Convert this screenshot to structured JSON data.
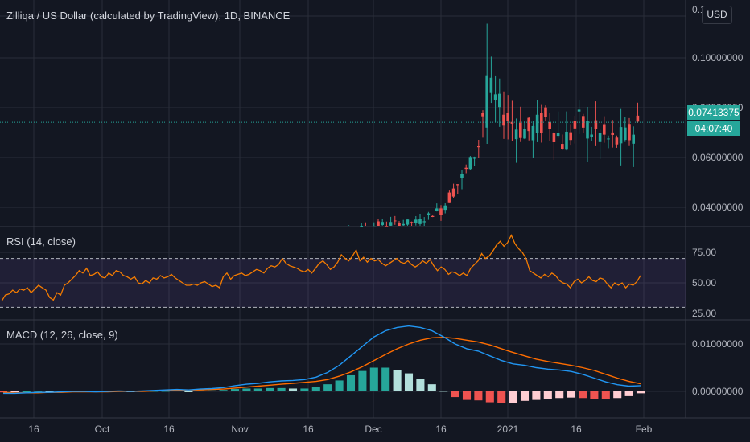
{
  "header": {
    "title": "Zilliqa / US Dollar (calculated by TradingView), 1D, BINANCE",
    "currency_button": "USD"
  },
  "price_tag": {
    "last_price": "0.07413375",
    "countdown": "04:07:40"
  },
  "colors": {
    "background": "#131722",
    "grid": "#2a2e39",
    "up": "#26a69a",
    "down": "#ef5350",
    "rsi_line": "#f57c00",
    "rsi_band": "#7e57c2",
    "macd_line": "#2196f3",
    "signal_line": "#ff6d00",
    "hist_up_strong": "#26a69a",
    "hist_up_weak": "#b2dfdb",
    "hist_down_strong": "#ef5350",
    "hist_down_weak": "#ffcdd2"
  },
  "chart_data": [
    {
      "type": "candlestick",
      "title": "Zilliqa / US Dollar (calculated by TradingView), 1D, BINANCE",
      "y_ticks": [
        "0.1",
        "0.10000000",
        "0.08000000",
        "0.06000000",
        "0.04000000"
      ],
      "ylim": [
        0.022,
        0.12
      ],
      "last_price": 0.07413375,
      "ohlc_sample": [
        {
          "date": "2020-11-23",
          "open": 0.0253,
          "high": 0.0385,
          "low": 0.0245,
          "close": 0.0312
        },
        {
          "date": "2020-12-01",
          "open": 0.033,
          "high": 0.037,
          "low": 0.029,
          "close": 0.031
        },
        {
          "date": "2020-12-14",
          "open": 0.034,
          "high": 0.0365,
          "low": 0.033,
          "close": 0.036
        },
        {
          "date": "2020-12-20",
          "open": 0.052,
          "high": 0.062,
          "low": 0.048,
          "close": 0.06
        },
        {
          "date": "2020-12-25",
          "open": 0.075,
          "high": 0.105,
          "low": 0.065,
          "close": 0.093
        },
        {
          "date": "2021-01-05",
          "open": 0.08,
          "high": 0.095,
          "low": 0.06,
          "close": 0.07
        },
        {
          "date": "2021-01-15",
          "open": 0.072,
          "high": 0.084,
          "low": 0.06,
          "close": 0.078
        },
        {
          "date": "2021-01-28",
          "open": 0.069,
          "high": 0.08,
          "low": 0.055,
          "close": 0.0741
        }
      ]
    },
    {
      "type": "line",
      "title": "RSI (14, close)",
      "y_ticks": [
        "75.00",
        "50.00",
        "25.00"
      ],
      "ylim": [
        20,
        92
      ],
      "bands": [
        30,
        70
      ],
      "values": [
        35,
        40,
        41,
        44,
        42,
        45,
        44,
        46,
        42,
        45,
        48,
        46,
        44,
        38,
        36,
        42,
        40,
        48,
        50,
        53,
        56,
        60,
        58,
        62,
        56,
        57,
        59,
        55,
        54,
        58,
        56,
        60,
        59,
        56,
        55,
        53,
        55,
        50,
        49,
        52,
        50,
        54,
        53,
        56,
        54,
        55,
        57,
        54,
        52,
        50,
        48,
        48,
        49,
        48,
        50,
        51,
        49,
        47,
        48,
        46,
        55,
        58,
        53,
        56,
        57,
        58,
        56,
        57,
        59,
        61,
        60,
        58,
        62,
        64,
        63,
        65,
        70,
        66,
        64,
        63,
        62,
        60,
        59,
        61,
        58,
        62,
        66,
        68,
        65,
        61,
        63,
        67,
        73,
        70,
        68,
        72,
        77,
        68,
        71,
        67,
        70,
        68,
        69,
        66,
        64,
        66,
        68,
        70,
        67,
        66,
        68,
        65,
        63,
        65,
        68,
        66,
        69,
        64,
        60,
        63,
        61,
        57,
        59,
        58,
        56,
        58,
        56,
        62,
        65,
        68,
        74,
        70,
        72,
        76,
        81,
        84,
        80,
        83,
        89,
        82,
        78,
        75,
        70,
        60,
        58,
        56,
        54,
        57,
        55,
        58,
        56,
        52,
        50,
        49,
        46,
        51,
        53,
        50,
        52,
        55,
        52,
        51,
        54,
        53,
        49,
        46,
        50,
        48,
        50,
        46,
        49,
        48,
        51,
        56
      ]
    },
    {
      "type": "line",
      "title": "MACD (12, 26, close, 9)",
      "y_ticks": [
        "0.01000000",
        "0.00000000"
      ],
      "ylim": [
        -0.0036,
        0.0165
      ],
      "series": [
        {
          "values_key": "macd"
        },
        {
          "values_key": "signal"
        },
        {
          "values_key": "histogram"
        }
      ],
      "macd": [
        -0.0004,
        -0.0004,
        -0.0003,
        -0.0002,
        -0.0002,
        -0.0001,
        0,
        0,
        -0.0001,
        0,
        0.0001,
        0,
        0.0001,
        0.0002,
        0.0003,
        0.0004,
        0.0003,
        0.0005,
        0.0006,
        0.0008,
        0.0012,
        0.0015,
        0.0017,
        0.002,
        0.0022,
        0.0023,
        0.0025,
        0.003,
        0.004,
        0.0055,
        0.0075,
        0.0095,
        0.0115,
        0.0128,
        0.0135,
        0.0138,
        0.0135,
        0.0128,
        0.0115,
        0.01,
        0.009,
        0.0085,
        0.0075,
        0.0065,
        0.0058,
        0.0055,
        0.005,
        0.0047,
        0.0045,
        0.0042,
        0.0036,
        0.0028,
        0.002,
        0.0014,
        0.0011,
        0.0012
      ],
      "signal": [
        -0.0002,
        -0.0003,
        -0.0003,
        -0.0003,
        -0.0002,
        -0.0002,
        -0.0001,
        -0.0001,
        -0.0001,
        -0.0001,
        0,
        0,
        0,
        0.0001,
        0.0002,
        0.0002,
        0.0003,
        0.0003,
        0.0004,
        0.0005,
        0.0007,
        0.0009,
        0.0011,
        0.0013,
        0.0015,
        0.0017,
        0.0019,
        0.0021,
        0.0025,
        0.0032,
        0.0041,
        0.0052,
        0.0065,
        0.0078,
        0.009,
        0.01,
        0.0108,
        0.0113,
        0.0114,
        0.0112,
        0.0108,
        0.0104,
        0.0098,
        0.009,
        0.0082,
        0.0075,
        0.0068,
        0.0063,
        0.0059,
        0.0055,
        0.005,
        0.0044,
        0.0036,
        0.0028,
        0.0021,
        0.0016
      ],
      "histogram": [
        -0.0002,
        -0.0001,
        0,
        0.0001,
        0,
        0.0001,
        0.0001,
        0.0001,
        0,
        0.0001,
        0.0001,
        0,
        0.0001,
        0.0001,
        0.0001,
        0.0002,
        0,
        0.0002,
        0.0002,
        0.0003,
        0.0005,
        0.0006,
        0.0006,
        0.0007,
        0.0007,
        0.0006,
        0.0006,
        0.0009,
        0.0015,
        0.0023,
        0.0034,
        0.0043,
        0.005,
        0.005,
        0.0045,
        0.0038,
        0.0027,
        0.0015,
        0.0001,
        -0.0012,
        -0.0018,
        -0.0019,
        -0.0023,
        -0.0025,
        -0.0024,
        -0.002,
        -0.0018,
        -0.0016,
        -0.0014,
        -0.0013,
        -0.0014,
        -0.0016,
        -0.0016,
        -0.0014,
        -0.001,
        -0.0004
      ]
    }
  ],
  "x_ticks": [
    "16",
    "Oct",
    "16",
    "Nov",
    "16",
    "Dec",
    "16",
    "2021",
    "16",
    "Feb"
  ]
}
